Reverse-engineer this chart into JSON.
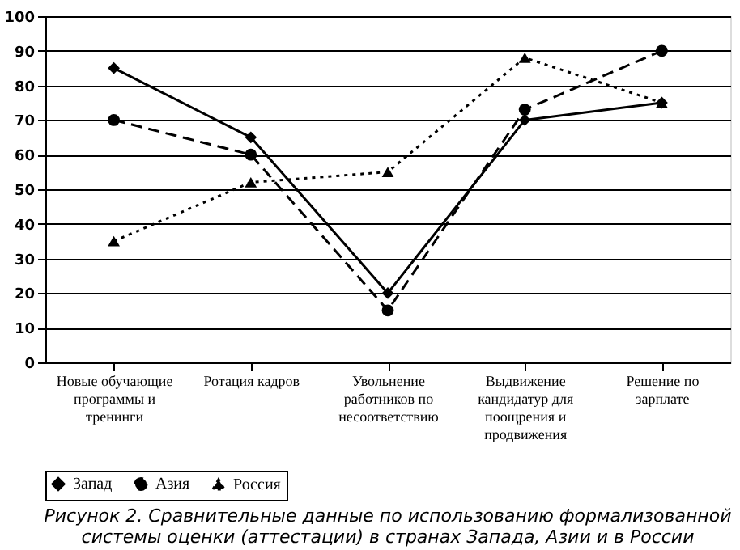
{
  "chart_data": {
    "type": "line",
    "categories": [
      "Новые обучающие программы и тренинги",
      "Ротация кадров",
      "Увольнение работников по несоответствию",
      "Выдвижение кандидатур для поощрения и продвижения",
      "Решение по зарплате"
    ],
    "series": [
      {
        "name": "Запад",
        "color": "#000000",
        "marker": "diamond",
        "line_style": "solid",
        "values": [
          85,
          65,
          20,
          70,
          75
        ]
      },
      {
        "name": "Азия",
        "color": "#000000",
        "marker": "circle",
        "line_style": "dashed",
        "values": [
          70,
          60,
          15,
          73,
          90
        ]
      },
      {
        "name": "Россия",
        "color": "#000000",
        "marker": "triangle",
        "line_style": "dotted",
        "values": [
          35,
          52,
          55,
          88,
          75
        ]
      }
    ],
    "ylim": [
      0,
      100
    ],
    "yticks": [
      0,
      10,
      20,
      30,
      40,
      50,
      60,
      70,
      80,
      90,
      100
    ],
    "grid": "y",
    "legend": "bottom",
    "annotations": [
      "Рисунок 2. Сравнительные данные по использованию формализованной системы оценки (аттестации) в странах Запада, Азии и в России"
    ]
  }
}
